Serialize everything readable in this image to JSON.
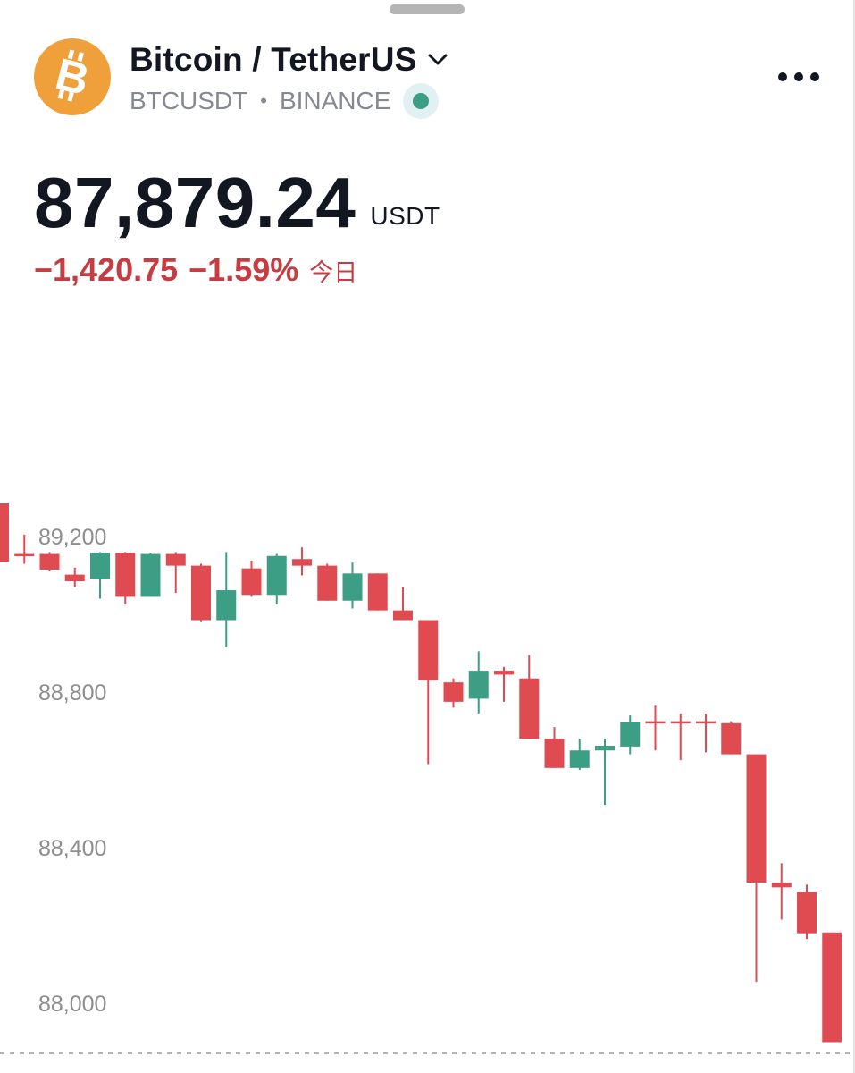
{
  "header": {
    "title": "Bitcoin / TetherUS",
    "ticker": "BTCUSDT",
    "separator": "•",
    "exchange": "BINANCE",
    "logo_icon": "bitcoin-icon",
    "logo_color": "#f0a03a",
    "status_color": "#3c9e85"
  },
  "quote": {
    "price": "87,879.24",
    "currency": "USDT",
    "change_abs": "−1,420.75",
    "change_pct": "−1.59%",
    "period": "今日",
    "change_color": "#c63c41"
  },
  "chart_data": {
    "type": "candlestick",
    "y_ticks": [
      "89,200",
      "88,800",
      "88,400",
      "88,000"
    ],
    "y_tick_values": [
      89200,
      88800,
      88400,
      88000
    ],
    "up_color": "#3c9e85",
    "down_color": "#e04b52",
    "candles": [
      {
        "o": 89285,
        "h": 89330,
        "c": 89135,
        "l": 89135
      },
      {
        "o": 89155,
        "h": 89205,
        "c": 89150,
        "l": 89130
      },
      {
        "o": 89155,
        "h": 89160,
        "c": 89115,
        "l": 89110
      },
      {
        "o": 89102,
        "h": 89120,
        "c": 89085,
        "l": 89070
      },
      {
        "o": 89090,
        "h": 89160,
        "c": 89158,
        "l": 89040
      },
      {
        "o": 89158,
        "h": 89160,
        "c": 89045,
        "l": 89025
      },
      {
        "o": 89045,
        "h": 89158,
        "c": 89155,
        "l": 89045
      },
      {
        "o": 89155,
        "h": 89160,
        "c": 89125,
        "l": 89055
      },
      {
        "o": 89125,
        "h": 89130,
        "c": 88985,
        "l": 88980
      },
      {
        "o": 88985,
        "h": 89160,
        "c": 89062,
        "l": 88915
      },
      {
        "o": 89118,
        "h": 89138,
        "c": 89050,
        "l": 89045
      },
      {
        "o": 89050,
        "h": 89155,
        "c": 89150,
        "l": 89025
      },
      {
        "o": 89142,
        "h": 89172,
        "c": 89125,
        "l": 89100
      },
      {
        "o": 89125,
        "h": 89130,
        "c": 89035,
        "l": 89035
      },
      {
        "o": 89035,
        "h": 89133,
        "c": 89105,
        "l": 89015
      },
      {
        "o": 89105,
        "h": 89105,
        "c": 89010,
        "l": 89010
      },
      {
        "o": 89010,
        "h": 89070,
        "c": 88985,
        "l": 88985
      },
      {
        "o": 88985,
        "h": 88985,
        "c": 88830,
        "l": 88615
      },
      {
        "o": 88825,
        "h": 88835,
        "c": 88775,
        "l": 88760
      },
      {
        "o": 88783,
        "h": 88905,
        "c": 88855,
        "l": 88745
      },
      {
        "o": 88855,
        "h": 88865,
        "c": 88845,
        "l": 88775
      },
      {
        "o": 88835,
        "h": 88895,
        "c": 88680,
        "l": 88680
      },
      {
        "o": 88680,
        "h": 88710,
        "c": 88605,
        "l": 88605
      },
      {
        "o": 88605,
        "h": 88680,
        "c": 88650,
        "l": 88600
      },
      {
        "o": 88650,
        "h": 88680,
        "c": 88662,
        "l": 88510
      },
      {
        "o": 88660,
        "h": 88740,
        "c": 88722,
        "l": 88640
      },
      {
        "o": 88725,
        "h": 88765,
        "c": 88720,
        "l": 88650
      },
      {
        "o": 88725,
        "h": 88745,
        "c": 88720,
        "l": 88625
      },
      {
        "o": 88725,
        "h": 88745,
        "c": 88720,
        "l": 88645
      },
      {
        "o": 88720,
        "h": 88725,
        "c": 88640,
        "l": 88640
      },
      {
        "o": 88640,
        "h": 88640,
        "c": 88310,
        "l": 88055
      },
      {
        "o": 88310,
        "h": 88360,
        "c": 88298,
        "l": 88215
      },
      {
        "o": 88285,
        "h": 88305,
        "c": 88180,
        "l": 88165
      },
      {
        "o": 88182,
        "h": 88182,
        "c": 87900,
        "l": 87900
      }
    ]
  }
}
